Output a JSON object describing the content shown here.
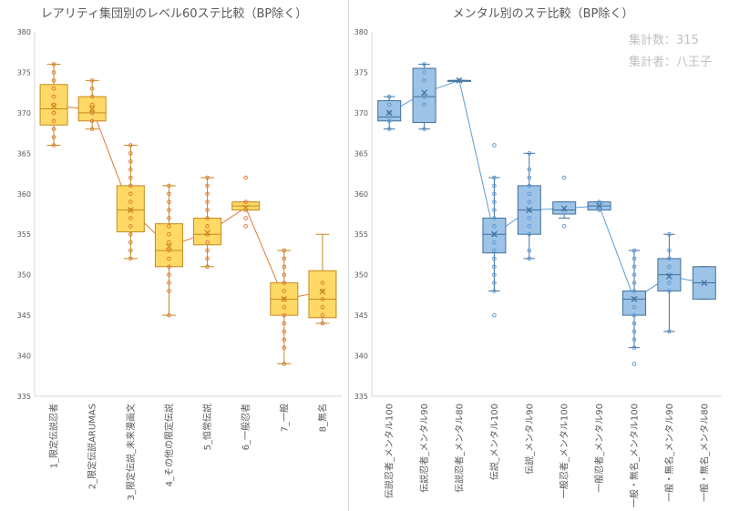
{
  "chart_data": [
    {
      "type": "box",
      "title": "レアリティ集団別のレベル60ステ比較（BP除く）",
      "ylim": [
        335,
        380
      ],
      "yticks": [
        335,
        340,
        345,
        350,
        355,
        360,
        365,
        370,
        375,
        380
      ],
      "grid": false,
      "style": {
        "fill": "#ffd966",
        "stroke": "#c58a1c",
        "line": "#e07b39"
      },
      "categories": [
        "1_限定伝説忍者",
        "2_限定伝説ARUMAS",
        "3_限定伝説_未来漫画文",
        "4_その他の限定伝説",
        "5_恒常伝説",
        "6_一般忍者",
        "7_一般",
        "8_無名"
      ],
      "boxes": [
        {
          "min": 366,
          "q1": 368.5,
          "median": 370.5,
          "q3": 373.5,
          "max": 376,
          "mean": 370.8,
          "points": [
            366,
            367,
            368,
            369,
            370,
            370,
            371,
            371,
            372,
            373,
            374,
            375,
            376
          ]
        },
        {
          "min": 368,
          "q1": 369,
          "median": 370,
          "q3": 372,
          "max": 374,
          "mean": 370.5,
          "points": [
            368,
            369,
            370,
            370,
            371,
            372,
            373,
            374
          ]
        },
        {
          "min": 352,
          "q1": 355.3,
          "median": 358,
          "q3": 361,
          "max": 366,
          "mean": 358,
          "points": [
            352,
            353,
            354,
            355,
            356,
            357,
            358,
            359,
            360,
            361,
            362,
            363,
            364,
            365,
            366
          ]
        },
        {
          "min": 345,
          "q1": 351,
          "median": 353,
          "q3": 356.3,
          "max": 361,
          "mean": 353.5,
          "points": [
            345,
            348,
            349,
            350,
            351,
            352,
            353,
            354,
            355,
            356,
            357,
            358,
            359,
            360,
            361
          ]
        },
        {
          "min": 351,
          "q1": 353.7,
          "median": 355,
          "q3": 357,
          "max": 362,
          "mean": 355.2,
          "points": [
            351,
            352,
            353,
            354,
            355,
            356,
            357,
            358,
            359,
            360,
            361,
            362
          ]
        },
        {
          "min": 358,
          "q1": 358,
          "median": 358.5,
          "q3": 359,
          "max": 359,
          "mean": 358.3,
          "points": [
            356,
            357,
            358,
            359,
            362
          ]
        },
        {
          "min": 339,
          "q1": 345,
          "median": 347,
          "q3": 349,
          "max": 353,
          "mean": 347,
          "points": [
            339,
            341,
            342,
            343,
            344,
            345,
            346,
            347,
            348,
            349,
            350,
            351,
            352,
            353
          ]
        },
        {
          "min": 344,
          "q1": 344.7,
          "median": 347,
          "q3": 350.5,
          "max": 355,
          "mean": 347.9,
          "points": [
            344,
            345,
            346,
            347,
            348,
            349
          ]
        }
      ]
    },
    {
      "type": "box",
      "title": "メンタル別のステ比較（BP除く）",
      "annotations": [
        "集計数：315",
        "集計者：八王子"
      ],
      "ylim": [
        335,
        380
      ],
      "yticks": [
        335,
        340,
        345,
        350,
        355,
        360,
        365,
        370,
        375,
        380
      ],
      "grid": false,
      "style": {
        "fill": "#9dc3e6",
        "stroke": "#41719c",
        "line": "#5b9bd5"
      },
      "categories": [
        "伝説忍者_メンタル100",
        "伝説忍者_メンタル90",
        "伝説忍者_メンタル80",
        "伝説_メンタル100",
        "伝説_メンタル90",
        "一般忍者_メンタル100",
        "一般忍者_メンタル90",
        "一般・無名_メンタル100",
        "一般・無名_メンタル90",
        "一般・無名_メンタル80"
      ],
      "boxes": [
        {
          "min": 368,
          "q1": 369,
          "median": 369.5,
          "q3": 371.5,
          "max": 372,
          "mean": 370,
          "points": [
            368,
            369,
            370,
            371,
            372
          ]
        },
        {
          "min": 368,
          "q1": 368.8,
          "median": 372,
          "q3": 375.5,
          "max": 376,
          "mean": 372.5,
          "points": [
            368,
            371,
            372,
            374,
            375,
            376
          ]
        },
        {
          "min": 374,
          "q1": 374,
          "median": 374,
          "q3": 374,
          "max": 374,
          "mean": 374,
          "points": [
            374
          ]
        },
        {
          "min": 348,
          "q1": 352.7,
          "median": 355,
          "q3": 357,
          "max": 362,
          "mean": 355,
          "points": [
            345,
            348,
            349,
            350,
            351,
            352,
            353,
            354,
            355,
            356,
            357,
            358,
            359,
            360,
            361,
            362,
            366
          ]
        },
        {
          "min": 352,
          "q1": 355,
          "median": 358,
          "q3": 361,
          "max": 365,
          "mean": 358,
          "points": [
            352,
            353,
            355,
            356,
            357,
            358,
            359,
            360,
            361,
            362,
            363,
            365
          ]
        },
        {
          "min": 357,
          "q1": 357.5,
          "median": 358,
          "q3": 359,
          "max": 359,
          "mean": 358.2,
          "points": [
            356,
            358,
            362
          ]
        },
        {
          "min": 358,
          "q1": 358,
          "median": 358.5,
          "q3": 359,
          "max": 359,
          "mean": 358.5,
          "points": [
            358,
            359
          ]
        },
        {
          "min": 341,
          "q1": 345,
          "median": 347,
          "q3": 348,
          "max": 353,
          "mean": 347,
          "points": [
            339,
            341,
            342,
            343,
            344,
            345,
            346,
            347,
            348,
            349,
            350,
            351,
            352,
            353
          ]
        },
        {
          "min": 343,
          "q1": 348,
          "median": 350,
          "q3": 352,
          "max": 355,
          "mean": 349.8,
          "points": [
            343,
            348,
            349,
            350,
            351,
            352,
            353,
            355
          ]
        },
        {
          "min": 347,
          "q1": 347,
          "median": 349,
          "q3": 351,
          "max": 351,
          "mean": 349,
          "points": []
        }
      ]
    }
  ]
}
